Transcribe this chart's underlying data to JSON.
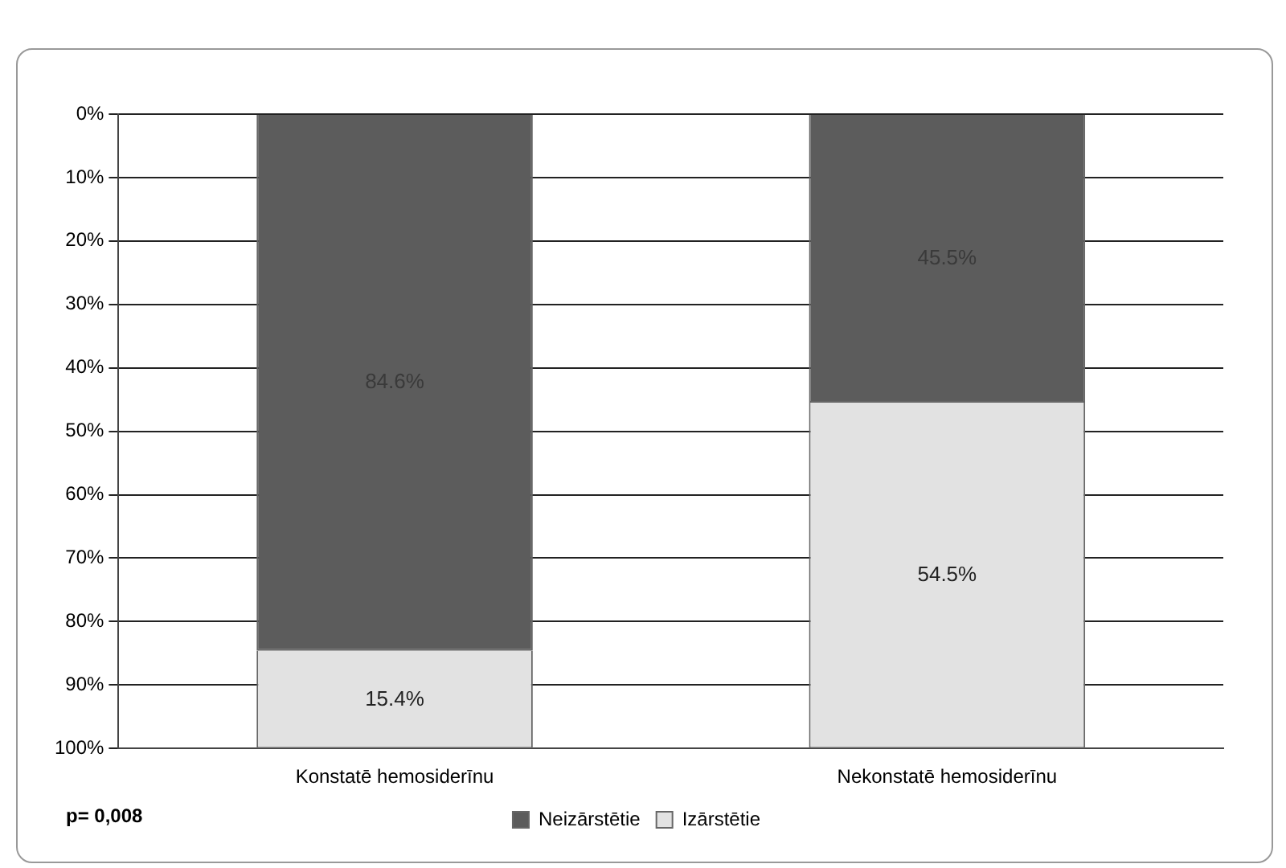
{
  "chart_data": {
    "type": "bar",
    "stacked": true,
    "categories": [
      "Konstatē hemosiderīnu",
      "Nekonstatē hemosiderīnu"
    ],
    "series": [
      {
        "name": "Neizārstētie",
        "color": "#5c5c5c",
        "values": [
          84.6,
          45.5
        ],
        "value_labels": [
          "84.6%",
          "45.5%"
        ]
      },
      {
        "name": "Izārstētie",
        "color": "#e2e2e2",
        "values": [
          15.4,
          54.5
        ],
        "value_labels": [
          "15.4%",
          "54.5%"
        ]
      }
    ],
    "ylim": [
      100,
      0
    ],
    "yticks": [
      {
        "value": 0,
        "label": "0%"
      },
      {
        "value": 10,
        "label": "10%"
      },
      {
        "value": 20,
        "label": "20%"
      },
      {
        "value": 30,
        "label": "30%"
      },
      {
        "value": 40,
        "label": "40%"
      },
      {
        "value": 50,
        "label": "50%"
      },
      {
        "value": 60,
        "label": "60%"
      },
      {
        "value": 70,
        "label": "70%"
      },
      {
        "value": 80,
        "label": "80%"
      },
      {
        "value": 90,
        "label": "90%"
      },
      {
        "value": 100,
        "label": "100%"
      }
    ],
    "grid": "y",
    "legend": "bottom",
    "annotations": [
      "p= 0,008"
    ]
  }
}
